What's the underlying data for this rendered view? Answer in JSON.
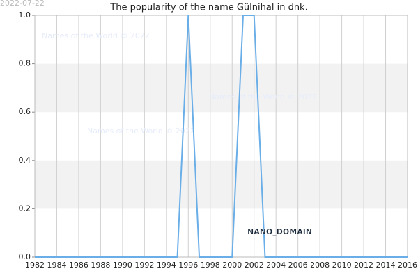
{
  "date": "2022-07-22",
  "chart_data": {
    "type": "line",
    "title": "The popularity of the name Gülnihal in dnk.",
    "x": [
      1982,
      1983,
      1984,
      1985,
      1986,
      1987,
      1988,
      1989,
      1990,
      1991,
      1992,
      1993,
      1994,
      1995,
      1996,
      1997,
      1998,
      1999,
      2000,
      2001,
      2002,
      2003,
      2004,
      2005,
      2006,
      2007,
      2008,
      2009,
      2010,
      2011,
      2012,
      2013,
      2014,
      2015,
      2016
    ],
    "values": [
      0,
      0,
      0,
      0,
      0,
      0,
      0,
      0,
      0,
      0,
      0,
      0,
      0,
      0,
      1,
      0,
      0,
      0,
      0,
      1,
      1,
      0,
      0,
      0,
      0,
      0,
      0,
      0,
      0,
      0,
      0,
      0,
      0,
      0,
      0
    ],
    "color": "#6aaee8",
    "xlim": [
      1982,
      2016
    ],
    "xticks": [
      1982,
      1984,
      1986,
      1988,
      1990,
      1992,
      1994,
      1996,
      1998,
      2000,
      2002,
      2004,
      2006,
      2008,
      2010,
      2012,
      2014,
      2016
    ],
    "ylim": [
      0,
      1
    ],
    "yticks": [
      {
        "value": 0,
        "label": "0.0"
      },
      0.2,
      0.4,
      0.6,
      0.8,
      {
        "value": 1,
        "label": "1.0"
      }
    ],
    "grid": true,
    "annotation": "NANO_DOMAIN",
    "watermarks": [
      "Names of the World © 2022",
      "Names of the World © 2022",
      "Names of the World © 2022"
    ]
  }
}
